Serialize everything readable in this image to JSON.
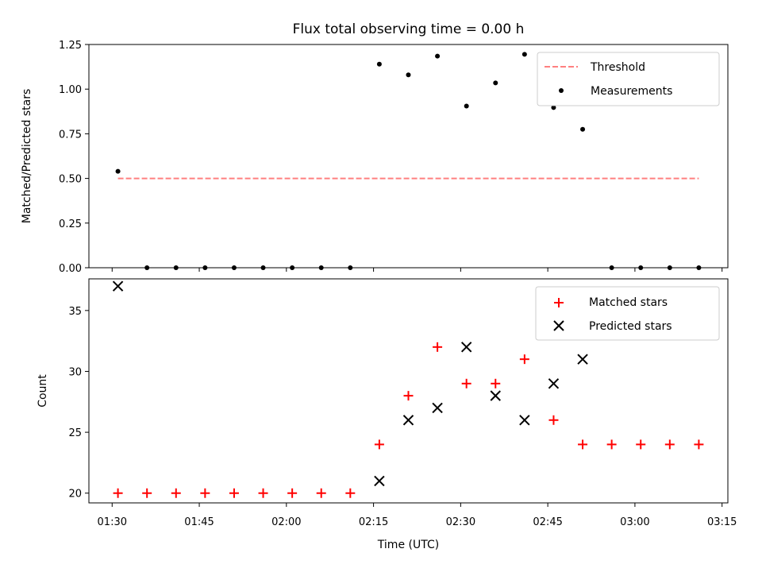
{
  "chart_data": [
    {
      "type": "scatter",
      "title": "Flux total observing time = 0.00 h",
      "xlabel": "",
      "ylabel": "Matched/Predicted stars",
      "ylim": [
        0,
        1.25
      ],
      "yticks": [
        "0.00",
        "0.25",
        "0.50",
        "0.75",
        "1.00",
        "1.25"
      ],
      "legend_position": "top-right",
      "series": [
        {
          "name": "Threshold",
          "style": "dashed-line",
          "color": "#ff8080",
          "x": [
            "01:31",
            "03:11"
          ],
          "y": [
            0.5,
            0.5
          ]
        },
        {
          "name": "Measurements",
          "style": "dot",
          "color": "#000000",
          "x": [
            "01:31",
            "01:36",
            "01:41",
            "01:46",
            "01:51",
            "01:56",
            "02:01",
            "02:06",
            "02:11",
            "02:16",
            "02:21",
            "02:26",
            "02:31",
            "02:36",
            "02:41",
            "02:46",
            "02:51",
            "02:56",
            "03:01",
            "03:06",
            "03:11"
          ],
          "y": [
            0.54,
            0.0,
            0.0,
            0.0,
            0.0,
            0.0,
            0.0,
            0.0,
            0.0,
            1.14,
            1.08,
            1.185,
            0.905,
            1.035,
            1.195,
            0.897,
            0.775,
            0.0,
            0.0,
            0.0,
            0.0
          ]
        }
      ]
    },
    {
      "type": "scatter",
      "title": "",
      "xlabel": "Time (UTC)",
      "ylabel": "Count",
      "xlim": [
        "01:26",
        "03:16"
      ],
      "xticks": [
        "01:30",
        "01:45",
        "02:00",
        "02:15",
        "02:30",
        "02:45",
        "03:00",
        "03:15"
      ],
      "ylim": [
        19.2,
        37.6
      ],
      "yticks": [
        "20",
        "25",
        "30",
        "35"
      ],
      "legend_position": "top-right",
      "series": [
        {
          "name": "Matched stars",
          "style": "plus",
          "color": "#ff0000",
          "x": [
            "01:31",
            "01:36",
            "01:41",
            "01:46",
            "01:51",
            "01:56",
            "02:01",
            "02:06",
            "02:11",
            "02:16",
            "02:21",
            "02:26",
            "02:31",
            "02:36",
            "02:41",
            "02:46",
            "02:51",
            "02:56",
            "03:01",
            "03:06",
            "03:11"
          ],
          "y": [
            20,
            20,
            20,
            20,
            20,
            20,
            20,
            20,
            20,
            24,
            28,
            32,
            29,
            29,
            31,
            26,
            24,
            24,
            24,
            24,
            24
          ]
        },
        {
          "name": "Predicted stars",
          "style": "x",
          "color": "#000000",
          "x": [
            "01:31",
            "02:16",
            "02:21",
            "02:26",
            "02:31",
            "02:36",
            "02:41",
            "02:46",
            "02:51"
          ],
          "y": [
            37,
            21,
            26,
            27,
            32,
            28,
            26,
            29,
            31
          ]
        }
      ]
    }
  ]
}
